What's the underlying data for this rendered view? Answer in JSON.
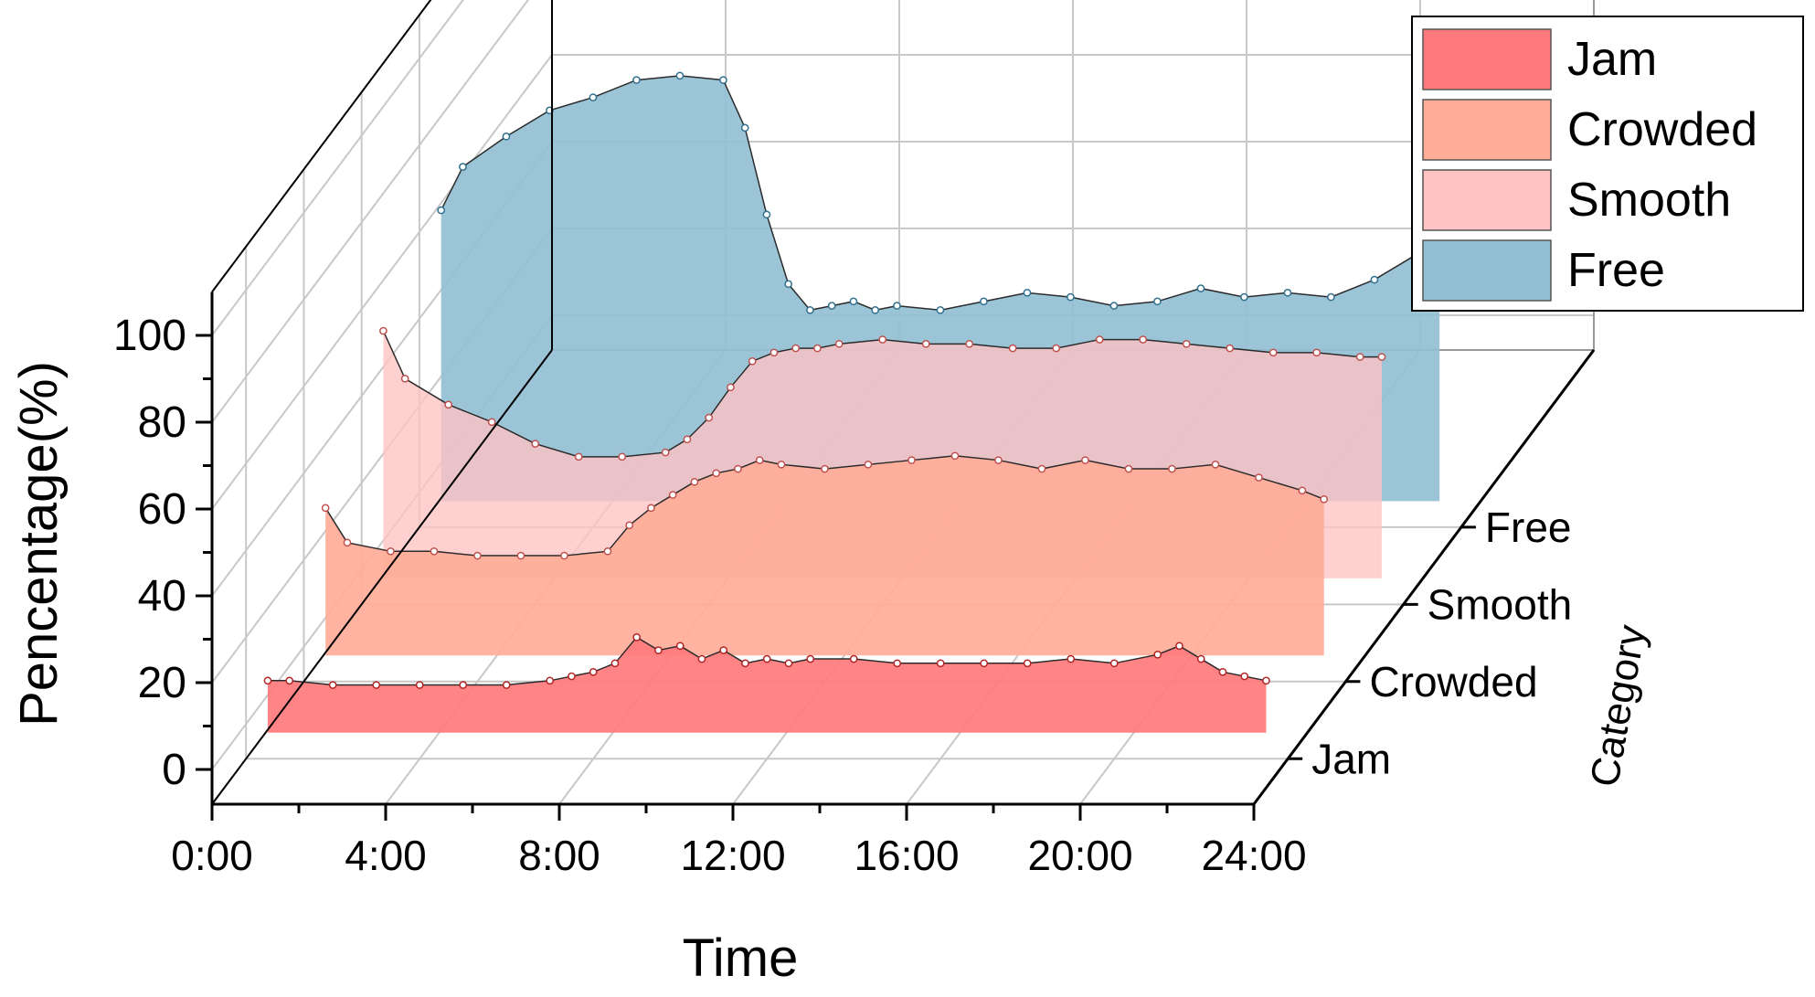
{
  "chart_data": {
    "type": "area",
    "subtype": "3d-wall-area",
    "x_unit": "hours",
    "xlabel": "Time",
    "ylabel": "Pencentage(%)",
    "zlabel": "Category",
    "x_ticks": [
      "0:00",
      "4:00",
      "8:00",
      "12:00",
      "16:00",
      "20:00",
      "24:00"
    ],
    "y_ticks": [
      0,
      20,
      40,
      60,
      80,
      100
    ],
    "xlim": [
      0,
      24
    ],
    "ylim": [
      -8,
      110
    ],
    "grid": true,
    "legend_position": "top-right",
    "categories": [
      "Jam",
      "Crowded",
      "Smooth",
      "Free"
    ],
    "series": [
      {
        "name": "Jam",
        "color": "#FF7A7C",
        "marker_color": "#B22222",
        "x": [
          0.5,
          1,
          2,
          3,
          4,
          5,
          6,
          7,
          7.5,
          8,
          8.5,
          9,
          9.5,
          10,
          10.5,
          11,
          11.5,
          12,
          12.5,
          13,
          14,
          15,
          16,
          17,
          18,
          19,
          20,
          21,
          21.5,
          22,
          22.5,
          23,
          23.5
        ],
        "y": [
          10,
          10,
          9,
          9,
          9,
          9,
          9,
          10,
          11,
          12,
          14,
          20,
          17,
          18,
          15,
          17,
          14,
          15,
          14,
          15,
          15,
          14,
          14,
          14,
          14,
          15,
          14,
          16,
          18,
          15,
          12,
          11,
          10
        ]
      },
      {
        "name": "Crowded",
        "color": "#FFAD98",
        "marker_color": "#C0504D",
        "x": [
          0.5,
          1,
          2,
          3,
          4,
          5,
          6,
          7,
          7.5,
          8,
          8.5,
          9,
          9.5,
          10,
          10.5,
          11,
          12,
          13,
          14,
          15,
          16,
          17,
          18,
          19,
          20,
          21,
          22,
          23,
          23.5
        ],
        "y": [
          32,
          24,
          22,
          22,
          21,
          21,
          21,
          22,
          28,
          32,
          35,
          38,
          40,
          41,
          43,
          42,
          41,
          42,
          43,
          44,
          43,
          41,
          43,
          41,
          41,
          42,
          39,
          36,
          34
        ]
      },
      {
        "name": "Smooth",
        "color": "#FFC3C3",
        "marker_color": "#C0504D",
        "x": [
          0.5,
          1,
          2,
          3,
          4,
          5,
          6,
          7,
          7.5,
          8,
          8.5,
          9,
          9.5,
          10,
          10.5,
          11,
          12,
          13,
          14,
          15,
          16,
          17,
          18,
          19,
          20,
          21,
          22,
          23,
          23.5
        ],
        "y": [
          55,
          44,
          38,
          34,
          29,
          26,
          26,
          27,
          30,
          35,
          42,
          48,
          50,
          51,
          51,
          52,
          53,
          52,
          52,
          51,
          51,
          53,
          53,
          52,
          51,
          50,
          50,
          49,
          49
        ]
      },
      {
        "name": "Free",
        "color": "#93BFD3",
        "marker_color": "#31708F",
        "x": [
          0.5,
          1,
          2,
          3,
          4,
          5,
          6,
          7,
          7.5,
          8,
          8.5,
          9,
          9.5,
          10,
          10.5,
          11,
          12,
          13,
          14,
          15,
          16,
          17,
          18,
          19,
          20,
          21,
          22,
          23,
          23.5
        ],
        "y": [
          65,
          75,
          82,
          88,
          91,
          95,
          96,
          95,
          84,
          64,
          48,
          42,
          43,
          44,
          42,
          43,
          42,
          44,
          46,
          45,
          43,
          44,
          47,
          45,
          46,
          45,
          49,
          55,
          59
        ]
      }
    ]
  }
}
